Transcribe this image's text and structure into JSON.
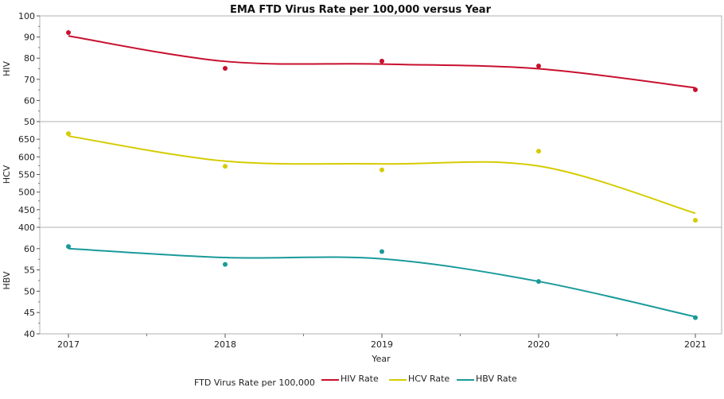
{
  "chart_data": {
    "type": "line",
    "title": "EMA FTD Virus Rate per 100,000 versus Year",
    "xlabel": "Year",
    "x": [
      2017,
      2018,
      2019,
      2020,
      2021
    ],
    "x_ticks": [
      "2017",
      "2018",
      "2019",
      "2020",
      "2021"
    ],
    "grid": false,
    "panels": [
      {
        "ylabel": "HIV",
        "ylim": [
          50,
          100
        ],
        "y_ticks": [
          "50",
          "60",
          "70",
          "80",
          "90",
          "100"
        ],
        "series": [
          {
            "name": "HIV Rate",
            "color": "#c8102e",
            "points": [
              92.1,
              75.2,
              78.6,
              76.3,
              65.1
            ],
            "smooth": [
              90.5,
              78.5,
              77.2,
              75.0,
              66.0
            ]
          }
        ]
      },
      {
        "ylabel": "HCV",
        "ylim": [
          400,
          700
        ],
        "y_ticks": [
          "400",
          "450",
          "500",
          "550",
          "600",
          "650"
        ],
        "series": [
          {
            "name": "HCV Rate",
            "color": "#d4cc00",
            "points": [
              666,
              573,
              563,
              616,
              420
            ],
            "smooth": [
              659,
              588,
              580,
              574,
              440
            ]
          }
        ]
      },
      {
        "ylabel": "HBV",
        "ylim": [
          40,
          65
        ],
        "y_ticks": [
          "40",
          "45",
          "50",
          "55",
          "60"
        ],
        "series": [
          {
            "name": "HBV Rate",
            "color": "#1a9a9a",
            "points": [
              60.5,
              56.3,
              59.3,
              52.3,
              43.8
            ],
            "smooth": [
              60.0,
              57.9,
              57.6,
              52.3,
              44.0
            ]
          }
        ]
      }
    ],
    "legend": {
      "title": "FTD Virus Rate per 100,000",
      "placement": "bottom",
      "items": [
        {
          "label": "HIV Rate",
          "color": "#c8102e"
        },
        {
          "label": "HCV Rate",
          "color": "#d4cc00"
        },
        {
          "label": "HBV Rate",
          "color": "#1a9a9a"
        }
      ]
    }
  }
}
